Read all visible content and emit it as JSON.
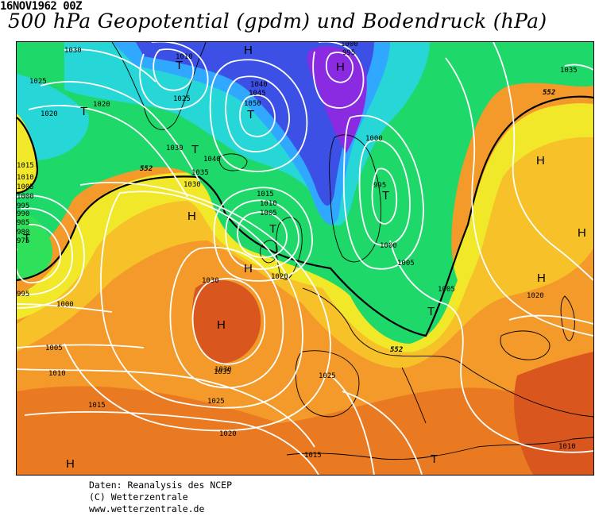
{
  "header": {
    "datetime": "16NOV1962 00Z",
    "title": "500 hPa Geopotential (gpdm) und Bodendruck (hPa)"
  },
  "map": {
    "colors": {
      "purple": "#8a2be2",
      "blue": "#3c50e6",
      "light_blue": "#30a8ff",
      "cyan": "#27d6d6",
      "green": "#1fd86a",
      "bright_green": "#2fe05a",
      "yellow": "#f2e82a",
      "yellow_orange": "#f7c12a",
      "orange": "#f39a2a",
      "dark_orange": "#ea7a22",
      "red_orange": "#d9571e",
      "isobar": "#ffffff",
      "contour_552": "#000000",
      "coastline": "#000000"
    },
    "contour_label": "552",
    "isobar_labels": [
      "1030",
      "1025",
      "1020",
      "1020",
      "1025",
      "1030",
      "1040",
      "1035",
      "1030",
      "1015",
      "1010",
      "1005",
      "1000",
      "995",
      "990",
      "985",
      "980",
      "975",
      "1040",
      "1045",
      "1050",
      "1010",
      "1000",
      "995",
      "1000",
      "995",
      "1000",
      "1005",
      "1015",
      "1010",
      "1005",
      "1020",
      "1030",
      "1035",
      "995",
      "1000",
      "1005",
      "1010",
      "1015",
      "1025",
      "1030",
      "1020",
      "1015",
      "1025",
      "1005",
      "1020",
      "1010",
      "1035"
    ],
    "pressure_centers": [
      {
        "label": "T"
      },
      {
        "label": "T"
      },
      {
        "label": "H"
      },
      {
        "label": "T"
      },
      {
        "label": "T"
      },
      {
        "label": "H"
      },
      {
        "label": "T"
      },
      {
        "label": "H"
      },
      {
        "label": "T"
      },
      {
        "label": "H"
      },
      {
        "label": "H"
      },
      {
        "label": "T"
      },
      {
        "label": "T"
      },
      {
        "label": "H"
      },
      {
        "label": "H"
      },
      {
        "label": "H"
      },
      {
        "label": "T"
      },
      {
        "label": "H"
      }
    ]
  },
  "credits": {
    "line1": "Daten: Reanalysis des NCEP",
    "line2": "(C) Wetterzentrale",
    "line3": "www.wetterzentrale.de"
  }
}
